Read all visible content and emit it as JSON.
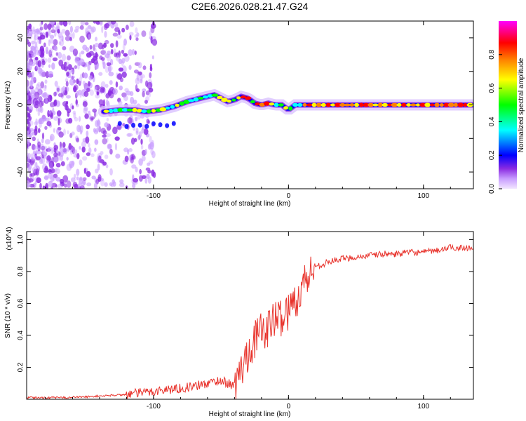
{
  "title": "C2E6.2026.028.21.47.G24",
  "chart_data": [
    {
      "type": "heatmap",
      "name": "spectrogram",
      "title": "C2E6.2026.028.21.47.G24",
      "xlabel": "Height of straight line (km)",
      "ylabel": "Frequency (Hz)",
      "xlim": [
        -194,
        137
      ],
      "ylim": [
        -50,
        50
      ],
      "xticks": [
        -100,
        0,
        100
      ],
      "xtick_labels": [
        "-100",
        "0",
        "100"
      ],
      "yticks": [
        -40,
        -20,
        0,
        20,
        40
      ],
      "ytick_labels": [
        "-40",
        "-20",
        "0",
        "20",
        "40"
      ],
      "colorbar": {
        "label": "Normalized spectral amplitude",
        "range": [
          0,
          1
        ],
        "ticks": [
          0.0,
          0.2,
          0.4,
          0.6,
          0.8
        ],
        "tick_labels": [
          "0.0",
          "0.2",
          "0.4",
          "0.6",
          "0.8"
        ],
        "colors": [
          "#f2e6ff",
          "#8a2be2",
          "#0000ff",
          "#00ffff",
          "#00ff00",
          "#ffff00",
          "#ff8000",
          "#ff0000",
          "#ff00ff"
        ]
      },
      "trace": {
        "x": [
          -137,
          -125,
          -115,
          -105,
          -95,
          -85,
          -75,
          -65,
          -55,
          -45,
          -40,
          -35,
          -30,
          -25,
          -20,
          -15,
          -10,
          -5,
          0,
          5,
          10,
          20,
          40,
          60,
          80,
          100,
          120,
          137
        ],
        "y": [
          -4,
          -3,
          -3,
          -4,
          -3,
          -1,
          2,
          4,
          6,
          2,
          3,
          5,
          4,
          1,
          0,
          1,
          0,
          0,
          -3,
          0,
          0,
          0,
          0,
          0,
          0,
          0,
          0,
          0
        ]
      }
    },
    {
      "type": "line",
      "name": "snr",
      "xlabel": "Height of straight line (km)",
      "ylabel": "SNR (10 * v/v)",
      "scale_label": "(x10^4)",
      "xlim": [
        -194,
        137
      ],
      "ylim": [
        0,
        1.05
      ],
      "xticks": [
        -100,
        0,
        100
      ],
      "xtick_labels": [
        "-100",
        "0",
        "100"
      ],
      "yticks": [
        0.2,
        0.4,
        0.6,
        0.8,
        1.0
      ],
      "ytick_labels": [
        "0.2",
        "0.4",
        "0.6",
        "0.8",
        "1.0"
      ],
      "color": "#e8322b",
      "series": [
        {
          "name": "SNR",
          "x": [
            -194,
            -170,
            -150,
            -140,
            -130,
            -120,
            -110,
            -100,
            -90,
            -80,
            -70,
            -60,
            -50,
            -45,
            -40,
            -35,
            -30,
            -25,
            -20,
            -15,
            -10,
            -5,
            0,
            5,
            10,
            15,
            20,
            30,
            40,
            50,
            60,
            70,
            80,
            90,
            100,
            110,
            120,
            137
          ],
          "y": [
            0.01,
            0.01,
            0.015,
            0.02,
            0.025,
            0.03,
            0.04,
            0.05,
            0.06,
            0.07,
            0.08,
            0.1,
            0.12,
            0.1,
            0.08,
            0.18,
            0.3,
            0.38,
            0.42,
            0.45,
            0.5,
            0.52,
            0.55,
            0.62,
            0.7,
            0.78,
            0.83,
            0.86,
            0.88,
            0.89,
            0.9,
            0.91,
            0.91,
            0.92,
            0.92,
            0.93,
            0.95,
            0.95
          ]
        }
      ]
    }
  ]
}
